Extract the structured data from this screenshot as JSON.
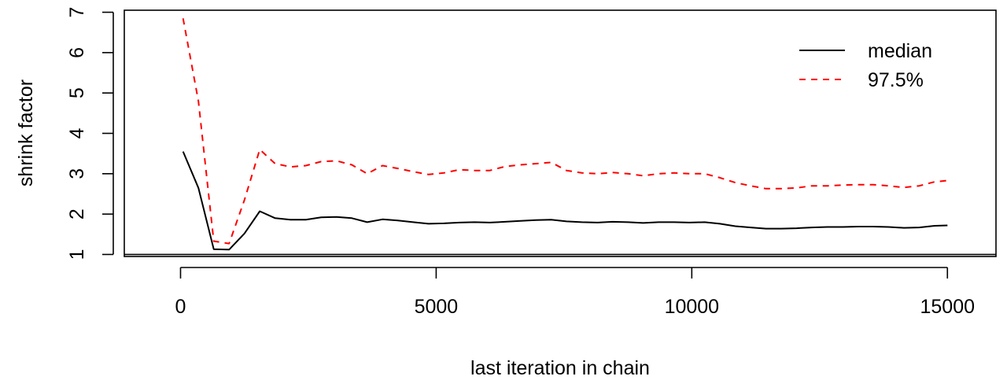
{
  "chart_data": {
    "type": "line",
    "title": "",
    "xlabel": "last iteration in chain",
    "ylabel": "shrink factor",
    "xlim": [
      -1100,
      15950
    ],
    "ylim": [
      0.95,
      7.05
    ],
    "x_ticks": [
      0,
      5000,
      10000,
      15000
    ],
    "y_ticks": [
      1,
      2,
      3,
      4,
      5,
      6,
      7
    ],
    "grid": false,
    "legend": {
      "position": "top-right",
      "framed": false
    },
    "reference_line": {
      "y": 1,
      "orientation": "horizontal"
    },
    "x": [
      50,
      350,
      650,
      950,
      1250,
      1550,
      1850,
      2150,
      2450,
      2750,
      3050,
      3350,
      3650,
      3950,
      4250,
      4550,
      4850,
      5150,
      5450,
      5750,
      6050,
      6350,
      6650,
      6950,
      7250,
      7550,
      7850,
      8150,
      8450,
      8750,
      9050,
      9350,
      9650,
      9950,
      10250,
      10550,
      10850,
      11150,
      11450,
      11750,
      12050,
      12350,
      12650,
      12950,
      13250,
      13550,
      13850,
      14150,
      14450,
      14750,
      15000
    ],
    "series": [
      {
        "name": "median",
        "color": "#000000",
        "dash": "solid",
        "values": [
          3.55,
          2.65,
          1.13,
          1.12,
          1.52,
          2.07,
          1.9,
          1.86,
          1.86,
          1.92,
          1.93,
          1.9,
          1.8,
          1.87,
          1.84,
          1.8,
          1.76,
          1.77,
          1.79,
          1.8,
          1.79,
          1.81,
          1.83,
          1.85,
          1.86,
          1.82,
          1.8,
          1.79,
          1.81,
          1.8,
          1.78,
          1.8,
          1.8,
          1.79,
          1.8,
          1.76,
          1.7,
          1.67,
          1.64,
          1.64,
          1.65,
          1.67,
          1.68,
          1.68,
          1.69,
          1.69,
          1.68,
          1.66,
          1.67,
          1.71,
          1.72
        ]
      },
      {
        "name": "97.5%",
        "color": "#ff0000",
        "dash": "dashed",
        "values": [
          6.85,
          4.8,
          1.33,
          1.27,
          2.35,
          3.6,
          3.25,
          3.17,
          3.2,
          3.3,
          3.32,
          3.22,
          3.0,
          3.2,
          3.13,
          3.05,
          2.98,
          3.02,
          3.1,
          3.08,
          3.08,
          3.18,
          3.22,
          3.25,
          3.28,
          3.08,
          3.02,
          3.0,
          3.03,
          3.0,
          2.95,
          3.0,
          3.02,
          3.0,
          3.0,
          2.9,
          2.78,
          2.7,
          2.63,
          2.63,
          2.65,
          2.7,
          2.7,
          2.72,
          2.73,
          2.73,
          2.7,
          2.66,
          2.7,
          2.8,
          2.83
        ]
      }
    ]
  }
}
